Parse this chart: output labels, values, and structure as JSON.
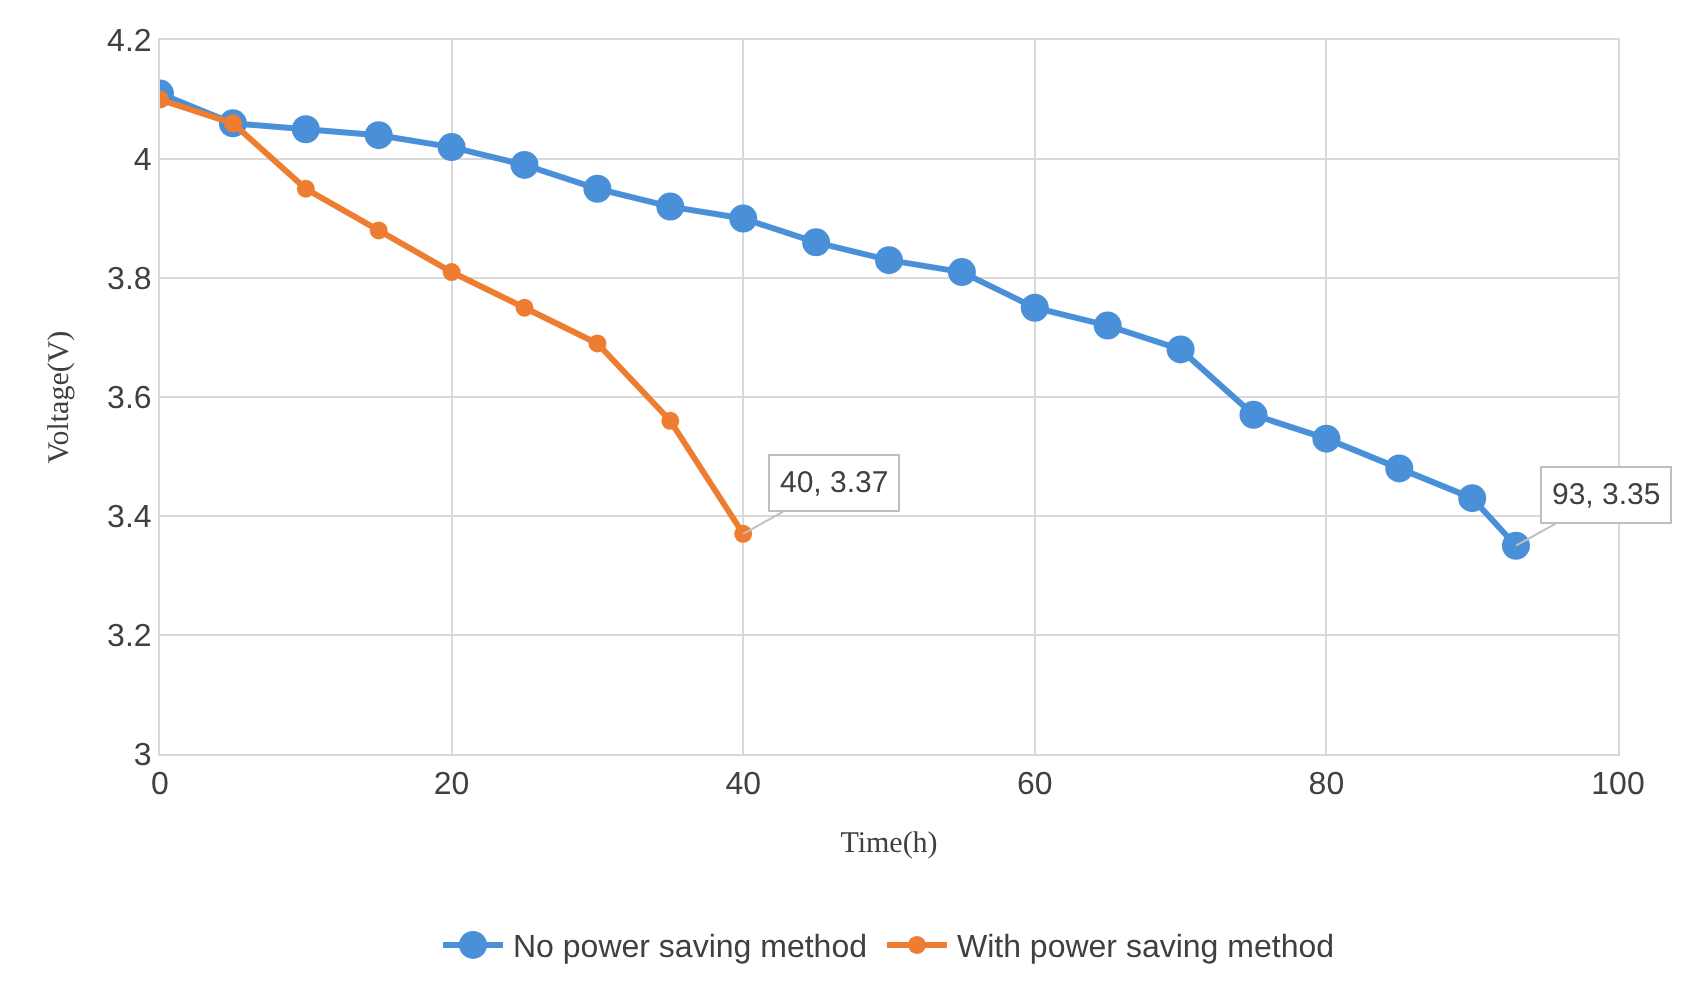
{
  "chart_data": {
    "type": "line",
    "xlabel": "Time(h)",
    "ylabel": "Voltage(V)",
    "xlim": [
      0,
      100
    ],
    "xticks": [
      0,
      20,
      40,
      60,
      80,
      100
    ],
    "ylim": [
      3,
      4.2
    ],
    "yticks": [
      3,
      3.2,
      3.4,
      3.6,
      3.8,
      4,
      4.2
    ],
    "grid": true,
    "legend": "bottom",
    "marker": "circle",
    "line_style": "solid",
    "series": [
      {
        "name": "No power saving method",
        "color": "#4a90d9",
        "x": [
          0,
          5,
          10,
          15,
          20,
          25,
          30,
          35,
          40,
          45,
          50,
          55,
          60,
          65,
          70,
          75,
          80,
          85,
          90,
          93
        ],
        "values": [
          4.11,
          4.06,
          4.05,
          4.04,
          4.02,
          3.99,
          3.95,
          3.92,
          3.9,
          3.86,
          3.83,
          3.81,
          3.75,
          3.72,
          3.68,
          3.57,
          3.53,
          3.48,
          3.43,
          3.35
        ]
      },
      {
        "name": "With power saving method",
        "color": "#ed7d31",
        "x": [
          0,
          5,
          10,
          15,
          20,
          25,
          30,
          35,
          40
        ],
        "values": [
          4.1,
          4.06,
          3.95,
          3.88,
          3.81,
          3.75,
          3.69,
          3.56,
          3.37
        ]
      }
    ],
    "annotations": [
      {
        "text": "40, 3.37",
        "x": 40,
        "y": 3.37
      },
      {
        "text": "93, 3.35",
        "x": 93,
        "y": 3.35
      }
    ]
  }
}
